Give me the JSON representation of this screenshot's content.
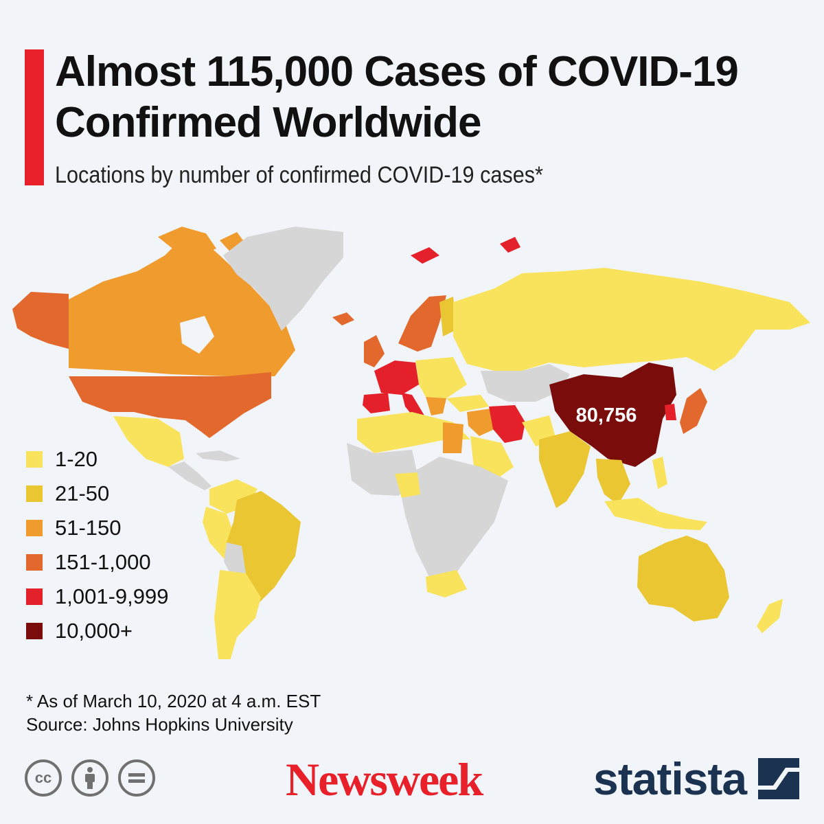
{
  "header": {
    "title_line1": "Almost 115,000 Cases of COVID-19",
    "title_line2": "Confirmed Worldwide",
    "subtitle": "Locations by number of confirmed COVID-19 cases*"
  },
  "map": {
    "highlight_label": "80,756",
    "colors": {
      "no_data": "#d6d6d6",
      "c1": "#f9e25c",
      "c2": "#e9c632",
      "c3": "#ef9b2e",
      "c4": "#e2682d",
      "c5": "#e4202a",
      "c6": "#7b0c0c"
    }
  },
  "legend": {
    "items": [
      {
        "label": "1-20",
        "color": "#f9e25c"
      },
      {
        "label": "21-50",
        "color": "#e9c632"
      },
      {
        "label": "51-150",
        "color": "#ef9b2e"
      },
      {
        "label": "151-1,000",
        "color": "#e2682d"
      },
      {
        "label": "1,001-9,999",
        "color": "#e4202a"
      },
      {
        "label": "10,000+",
        "color": "#7b0c0c"
      }
    ]
  },
  "footer": {
    "note": "* As of March 10, 2020 at 4 a.m. EST",
    "source": "Source: Johns Hopkins University",
    "newsweek": "Newsweek",
    "statista": "statista"
  }
}
